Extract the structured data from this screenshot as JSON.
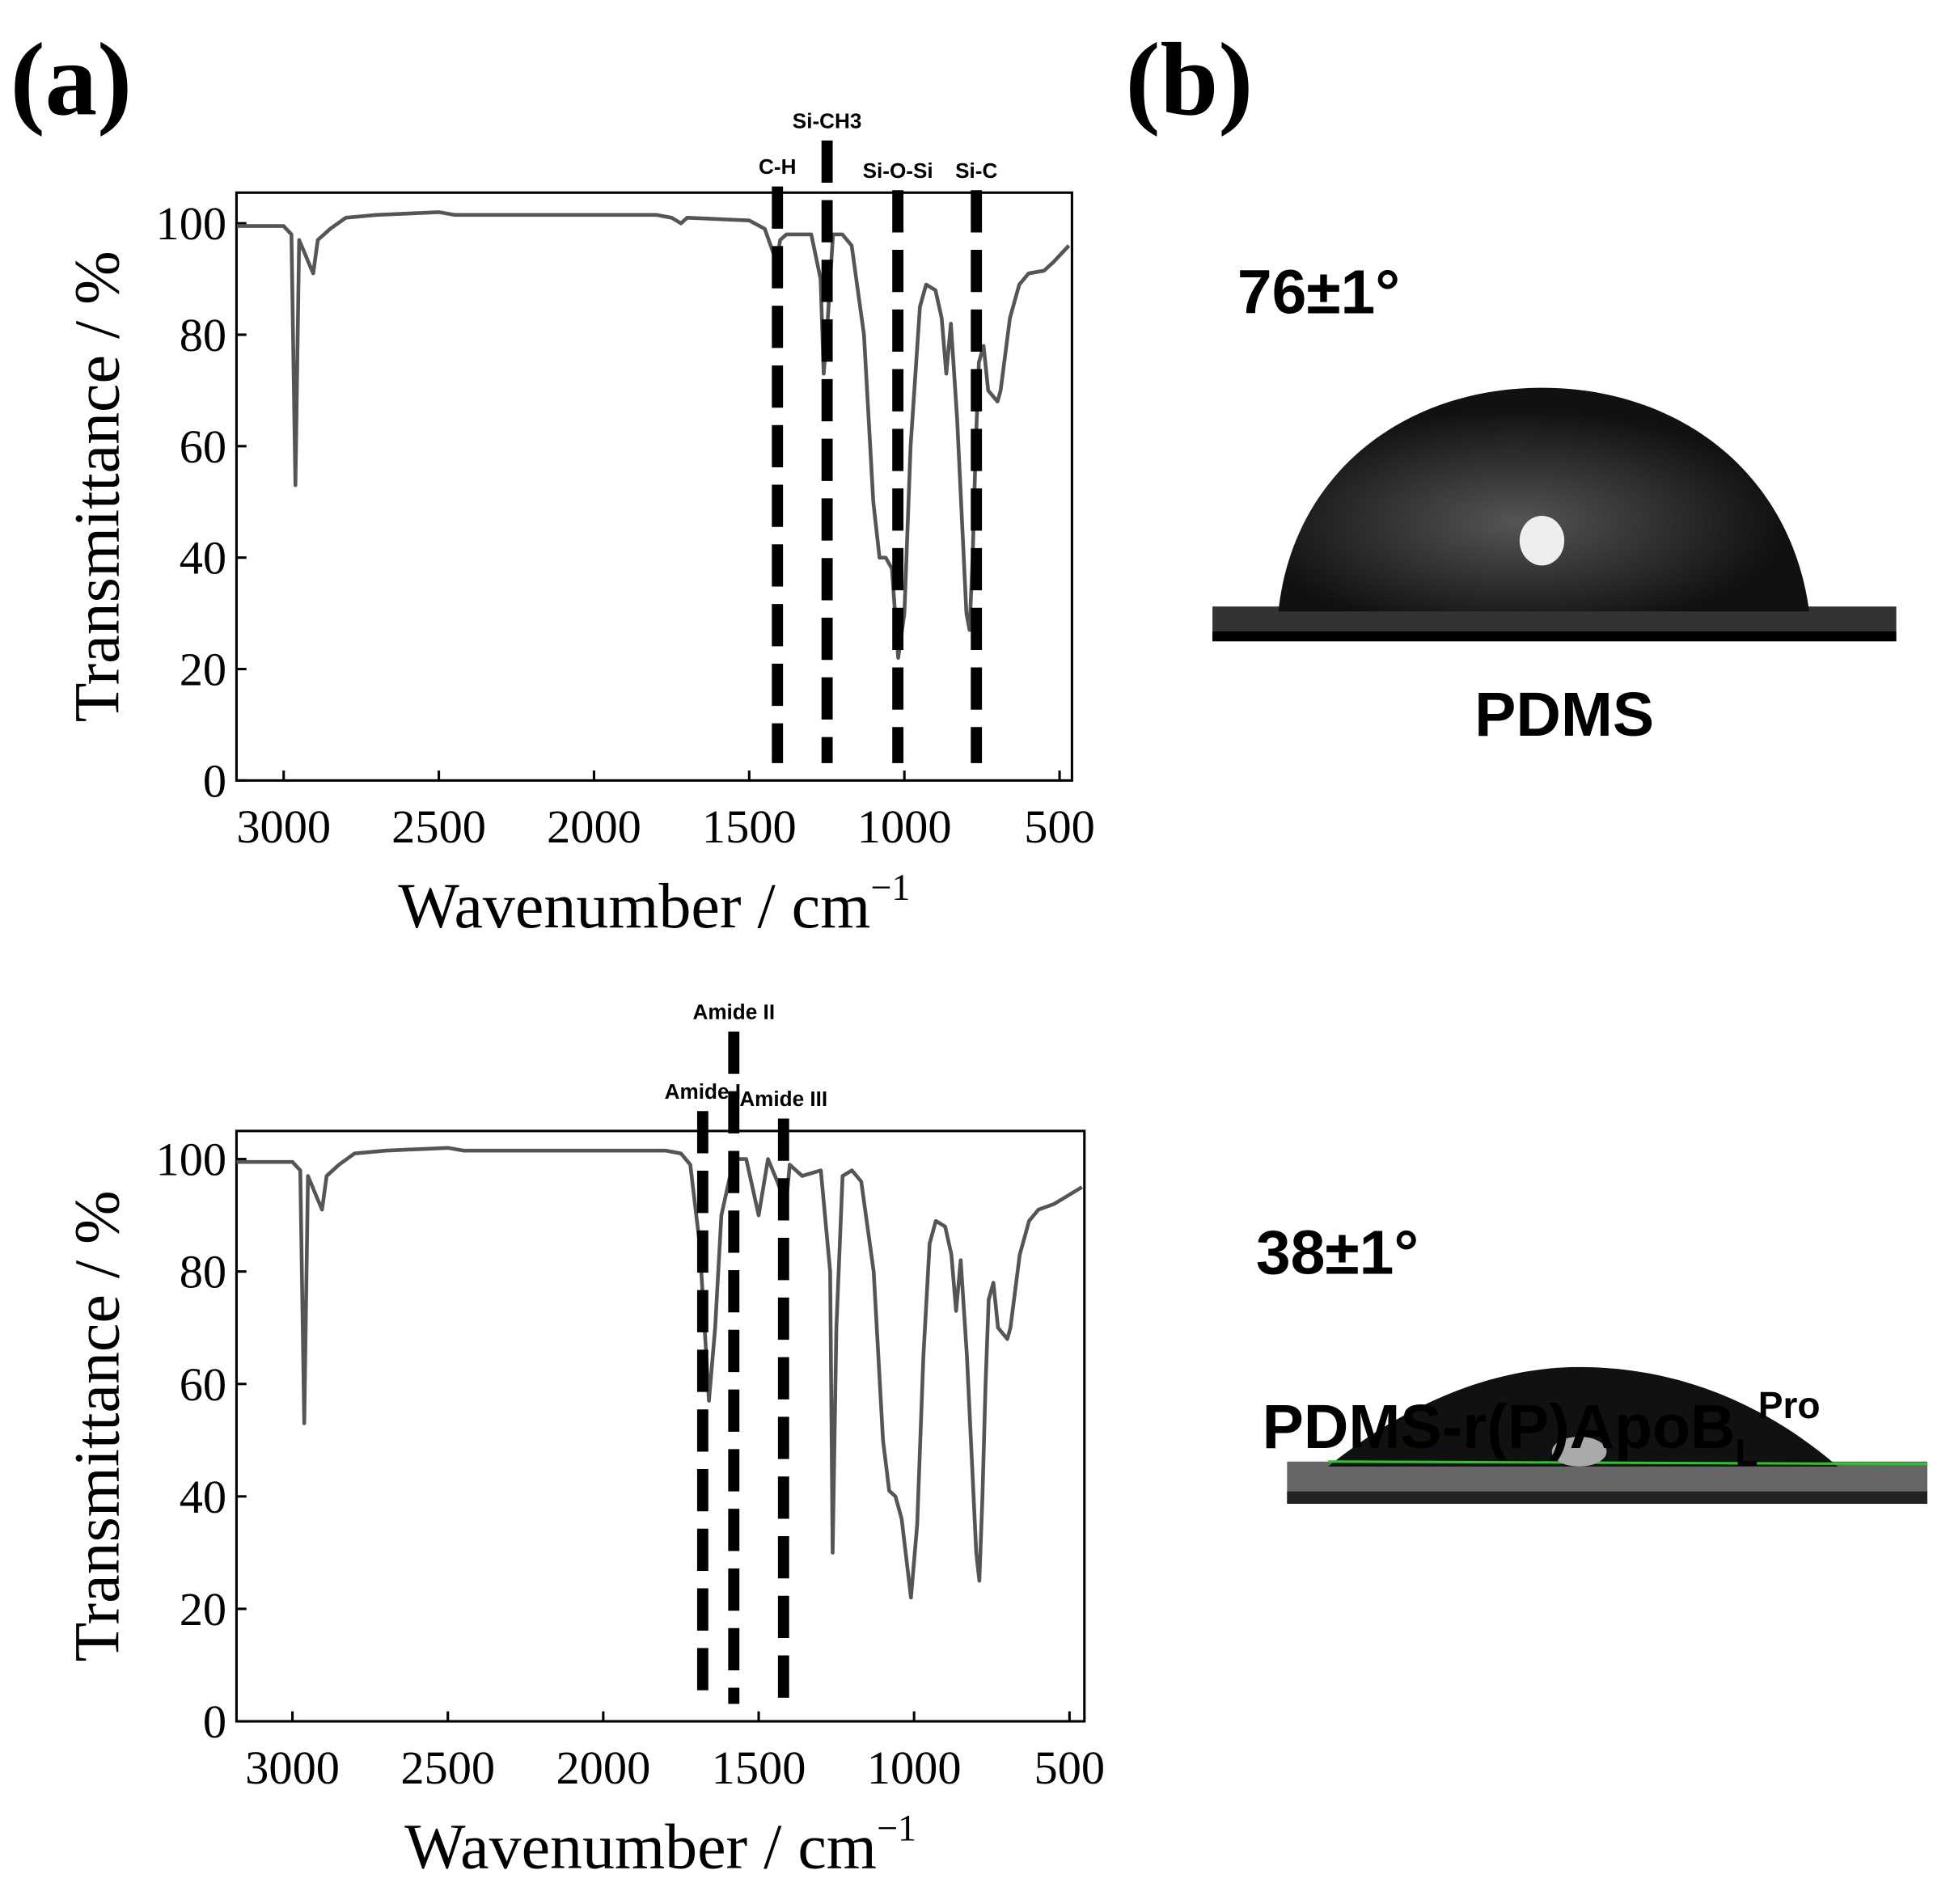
{
  "panel_labels": [
    "(a)",
    "(b)"
  ],
  "chart_data": [
    {
      "type": "line",
      "xlabel": {
        "text": "Wavenumber / cm",
        "sup": "−1"
      },
      "ylabel": "Transmittance / %",
      "xlim": [
        3152,
        460
      ],
      "ylim": [
        0,
        105.5
      ],
      "xticks": [
        3000,
        2500,
        2000,
        1500,
        1000,
        500
      ],
      "yticks": [
        0,
        20,
        40,
        60,
        80,
        100
      ],
      "color": "#555555",
      "x": [
        3150,
        3000,
        2975,
        2962,
        2950,
        2920,
        2905,
        2890,
        2850,
        2800,
        2700,
        2500,
        2450,
        2000,
        1800,
        1750,
        1720,
        1700,
        1500,
        1450,
        1412,
        1400,
        1380,
        1300,
        1270,
        1260,
        1250,
        1230,
        1200,
        1170,
        1130,
        1100,
        1080,
        1060,
        1040,
        1020,
        1000,
        980,
        950,
        930,
        900,
        880,
        865,
        850,
        830,
        800,
        790,
        780,
        770,
        760,
        745,
        730,
        700,
        690,
        660,
        630,
        600,
        550,
        520,
        470
      ],
      "values": [
        99.5,
        99.5,
        98,
        53,
        97,
        93,
        91,
        97,
        99,
        101,
        101.5,
        102,
        101.5,
        101.5,
        101.5,
        101,
        100,
        101,
        100.5,
        99,
        93,
        97,
        98,
        98,
        90,
        73,
        80,
        98,
        98,
        96,
        80,
        50,
        40,
        40,
        38,
        22,
        30,
        60,
        85,
        89,
        88,
        83,
        73,
        82,
        65,
        30,
        27,
        40,
        60,
        75,
        78,
        70,
        68,
        70,
        83,
        89,
        91,
        91.5,
        93,
        96
      ],
      "annotations": [
        {
          "text": "C-H",
          "x": 1409
        },
        {
          "text": "Si-CH3",
          "x": 1249
        },
        {
          "text": "Si-O-Si",
          "x": 1021
        },
        {
          "text": "Si-C",
          "x": 768
        }
      ]
    },
    {
      "type": "line",
      "xlabel": {
        "text": "Wavenumber / cm",
        "sup": "−1"
      },
      "ylabel": "Transmittance / %",
      "xlim": [
        3180,
        452
      ],
      "ylim": [
        0,
        105
      ],
      "xticks": [
        3000,
        2500,
        2000,
        1500,
        1000,
        500
      ],
      "yticks": [
        0,
        20,
        40,
        60,
        80,
        100
      ],
      "color": "#555555",
      "x": [
        3180,
        3000,
        2975,
        2962,
        2950,
        2920,
        2905,
        2890,
        2850,
        2800,
        2700,
        2500,
        2450,
        2000,
        1800,
        1750,
        1720,
        1690,
        1660,
        1640,
        1620,
        1600,
        1580,
        1540,
        1520,
        1500,
        1470,
        1440,
        1412,
        1400,
        1380,
        1360,
        1300,
        1270,
        1262,
        1250,
        1230,
        1200,
        1170,
        1130,
        1100,
        1080,
        1060,
        1040,
        1010,
        990,
        970,
        950,
        930,
        900,
        880,
        865,
        850,
        830,
        800,
        790,
        780,
        770,
        760,
        745,
        730,
        700,
        690,
        660,
        630,
        600,
        550,
        520,
        460
      ],
      "values": [
        99.5,
        99.5,
        98,
        53,
        97,
        93,
        91,
        97,
        99,
        101,
        101.5,
        102,
        101.5,
        101.5,
        101.5,
        101,
        99,
        85,
        57,
        70,
        90,
        95,
        100,
        100,
        95,
        90,
        100,
        96,
        92,
        99,
        98,
        97,
        98,
        80,
        30,
        70,
        97,
        98,
        96,
        80,
        50,
        41,
        40,
        36,
        22,
        35,
        65,
        85,
        89,
        88,
        83,
        73,
        82,
        65,
        30,
        25,
        40,
        60,
        75,
        78,
        70,
        68,
        70,
        83,
        89,
        91,
        92,
        93,
        95
      ],
      "annotations": [
        {
          "text": "Amide I",
          "x": 1680
        },
        {
          "text": "Amide II",
          "x": 1580
        },
        {
          "text": "Amide III",
          "x": 1420
        }
      ]
    }
  ],
  "droplets": [
    {
      "angle": "76±1°",
      "label": {
        "text": "PDMS"
      }
    },
    {
      "angle": "38±1°",
      "label": {
        "text": "PDMS-r(P)ApoB",
        "sub": "L",
        "sup": "Pro"
      }
    }
  ]
}
